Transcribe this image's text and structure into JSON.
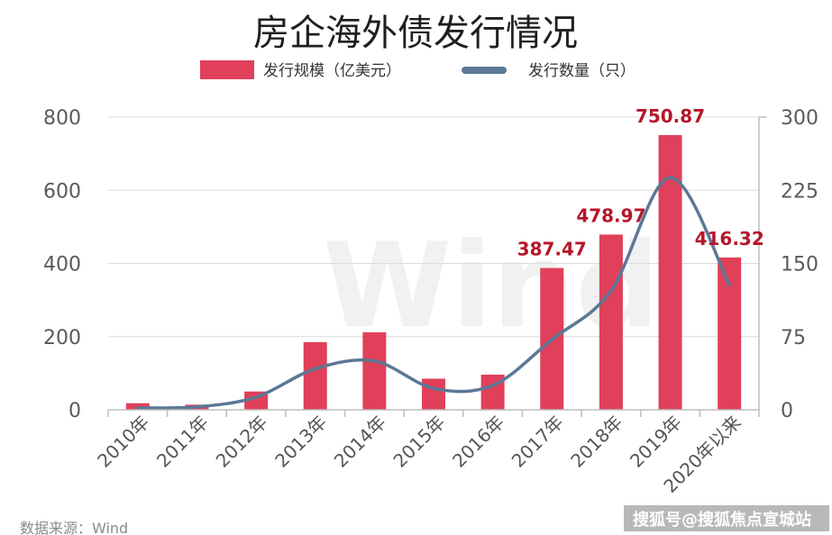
{
  "header": {
    "title": "房企海外债发行情况"
  },
  "legend": [
    {
      "label": "发行规模（亿美元）",
      "kind": "bar"
    },
    {
      "label": "发行数量（只）",
      "kind": "line"
    }
  ],
  "footer": {
    "source": "数据来源：Wind",
    "credit": "搜狐号@搜狐焦点宣城站",
    "watermark": "Wind"
  },
  "colors": {
    "bar": "#e0405a",
    "line": "#5b7896",
    "label": "#b5162b"
  },
  "chart_data": {
    "type": "bar",
    "title": "房企海外债发行情况",
    "categories": [
      "2010年",
      "2011年",
      "2012年",
      "2013年",
      "2014年",
      "2015年",
      "2016年",
      "2017年",
      "2018年",
      "2019年",
      "2020年以来"
    ],
    "series": [
      {
        "name": "发行规模（亿美元）",
        "type": "bar",
        "axis": "left",
        "values": [
          18,
          14,
          50,
          185,
          212,
          85,
          96,
          387.47,
          478.97,
          750.87,
          416.32
        ]
      },
      {
        "name": "发行数量（只）",
        "type": "line",
        "axis": "right",
        "values": [
          2,
          3,
          13,
          42,
          50,
          22,
          25,
          72,
          122,
          238,
          128
        ]
      }
    ],
    "data_labels": [
      {
        "index": 7,
        "text": "387.47"
      },
      {
        "index": 8,
        "text": "478.97"
      },
      {
        "index": 9,
        "text": "750.87"
      },
      {
        "index": 10,
        "text": "416.32"
      }
    ],
    "yaxis_left": {
      "min": 0,
      "max": 800,
      "ticks": [
        0,
        200,
        400,
        600,
        800
      ]
    },
    "yaxis_right": {
      "min": 0,
      "max": 300,
      "ticks": [
        0,
        75,
        150,
        225,
        300
      ]
    },
    "grid": true,
    "legend_position": "top"
  }
}
